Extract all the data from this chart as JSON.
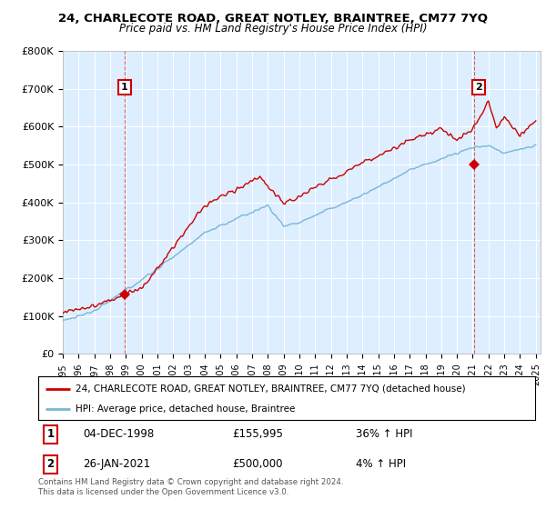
{
  "title": "24, CHARLECOTE ROAD, GREAT NOTLEY, BRAINTREE, CM77 7YQ",
  "subtitle": "Price paid vs. HM Land Registry's House Price Index (HPI)",
  "ylim": [
    0,
    800000
  ],
  "yticks": [
    0,
    100000,
    200000,
    300000,
    400000,
    500000,
    600000,
    700000,
    800000
  ],
  "ytick_labels": [
    "£0",
    "£100K",
    "£200K",
    "£300K",
    "£400K",
    "£500K",
    "£600K",
    "£700K",
    "£800K"
  ],
  "hpi_color": "#7ab5d8",
  "price_color": "#cc0000",
  "chart_bg_color": "#ddeeff",
  "grid_color": "#ffffff",
  "legend_label_price": "24, CHARLECOTE ROAD, GREAT NOTLEY, BRAINTREE, CM77 7YQ (detached house)",
  "legend_label_hpi": "HPI: Average price, detached house, Braintree",
  "annotation1_date": "04-DEC-1998",
  "annotation1_price": "£155,995",
  "annotation1_hpi": "36% ↑ HPI",
  "annotation2_date": "26-JAN-2021",
  "annotation2_price": "£500,000",
  "annotation2_hpi": "4% ↑ HPI",
  "footer": "Contains HM Land Registry data © Crown copyright and database right 2024.\nThis data is licensed under the Open Government Licence v3.0.",
  "sale1_year": 1998.92,
  "sale1_value": 155995,
  "sale2_year": 2021.07,
  "sale2_value": 500000
}
